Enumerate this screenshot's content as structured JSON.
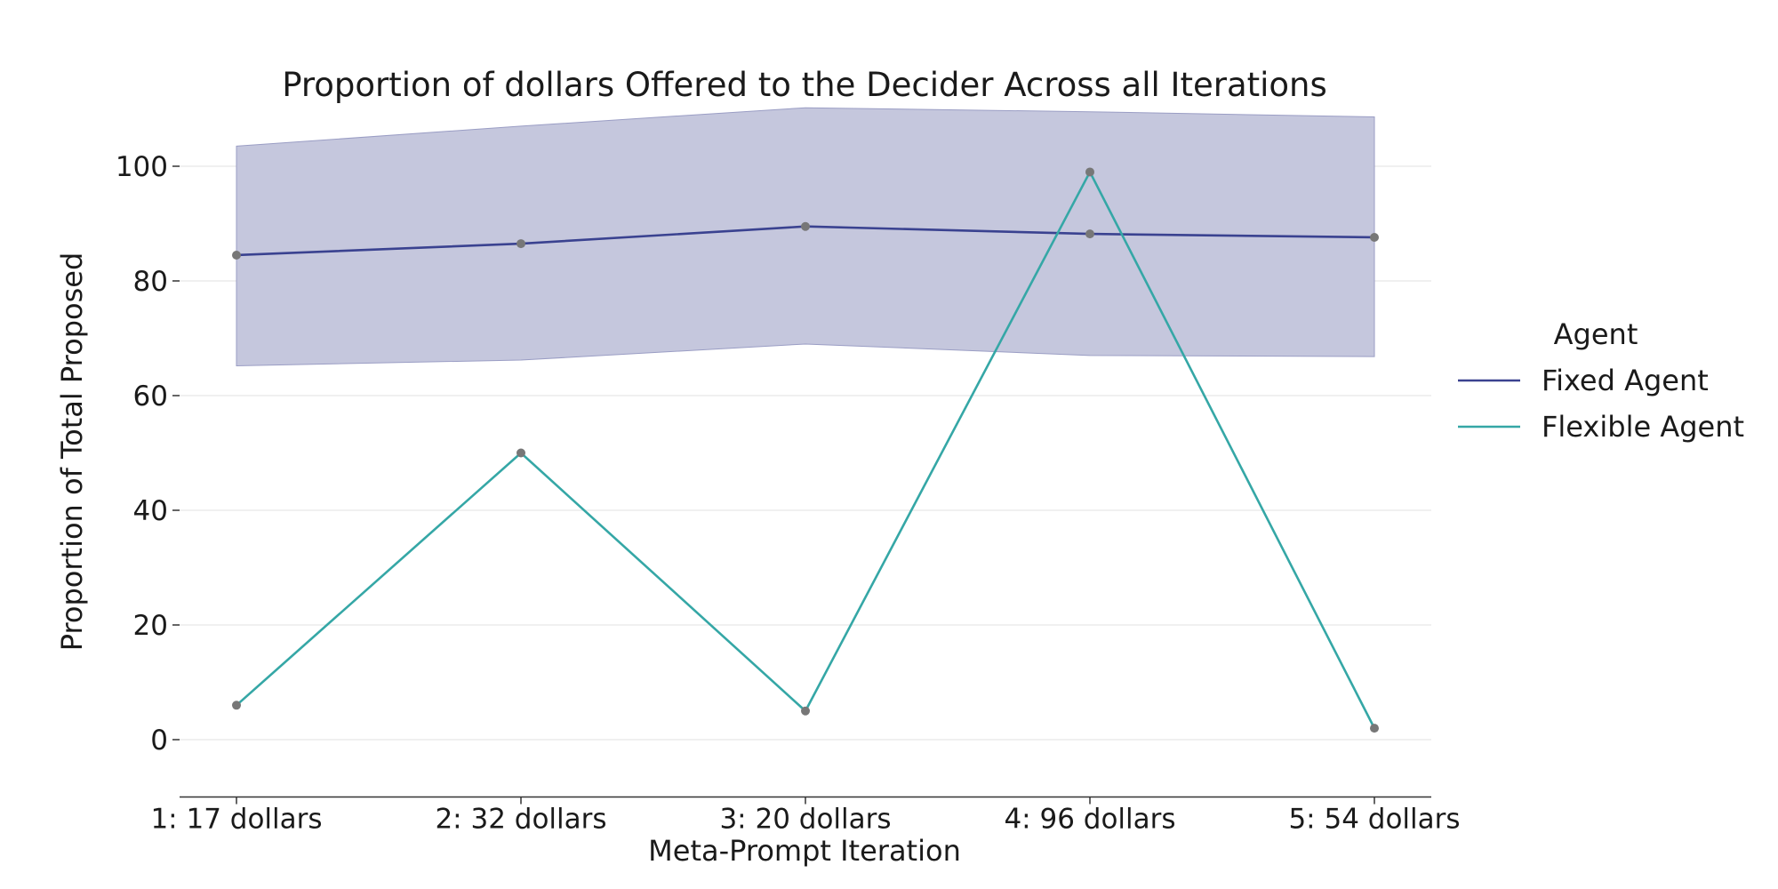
{
  "chart_data": {
    "type": "line",
    "title": "Proportion of dollars Offered to the Decider Across all Iterations",
    "xlabel": "Meta-Prompt Iteration",
    "ylabel": "Proportion of Total Proposed",
    "categories": [
      "1: 17 dollars",
      "2: 32 dollars",
      "3: 20 dollars",
      "4: 96 dollars",
      "5: 54 dollars"
    ],
    "ylim": [
      -10,
      110
    ],
    "yticks": [
      0,
      20,
      40,
      60,
      80,
      100
    ],
    "grid": "horizontal",
    "legend": {
      "title": "Agent",
      "placement": "right"
    },
    "series": [
      {
        "name": "Fixed Agent",
        "color": "#3a4290",
        "values": [
          84.5,
          86.5,
          89.5,
          88.2,
          87.6
        ],
        "band_lower": [
          65.2,
          66.2,
          69.0,
          67.0,
          66.8
        ],
        "band_upper": [
          103.5,
          107.0,
          110.2,
          109.5,
          108.6
        ],
        "band_color": "#c5c7dd"
      },
      {
        "name": "Flexible Agent",
        "color": "#35a7a6",
        "values": [
          6,
          50,
          5,
          99,
          2
        ]
      }
    ],
    "marker_color": "#777777"
  }
}
